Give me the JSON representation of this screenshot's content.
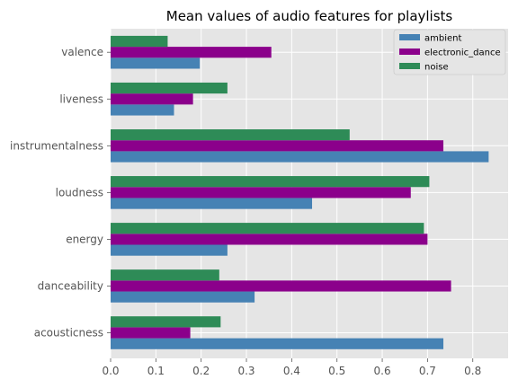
{
  "chart_data": {
    "type": "bar",
    "orientation": "horizontal",
    "title": "Mean values of audio features for playlists",
    "xlabel": "",
    "ylabel": "",
    "categories": [
      "acousticness",
      "danceability",
      "energy",
      "loudness",
      "instrumentalness",
      "liveness",
      "valence"
    ],
    "series": [
      {
        "name": "ambient",
        "color": "#4682b4",
        "values": [
          0.735,
          0.318,
          0.258,
          0.445,
          0.835,
          0.14,
          0.197
        ]
      },
      {
        "name": "electronic_dance",
        "color": "#8b008b",
        "values": [
          0.176,
          0.752,
          0.7,
          0.663,
          0.735,
          0.182,
          0.355
        ]
      },
      {
        "name": "noise",
        "color": "#2e8b57",
        "values": [
          0.243,
          0.24,
          0.692,
          0.704,
          0.528,
          0.258,
          0.126
        ]
      }
    ],
    "xticks": [
      "0.0",
      "0.1",
      "0.2",
      "0.3",
      "0.4",
      "0.5",
      "0.6",
      "0.7",
      "0.8"
    ],
    "xlim": [
      0,
      0.878
    ],
    "grid": true,
    "legend_position": "upper right",
    "background": "#e5e5e5",
    "grid_color": "#ffffff"
  }
}
